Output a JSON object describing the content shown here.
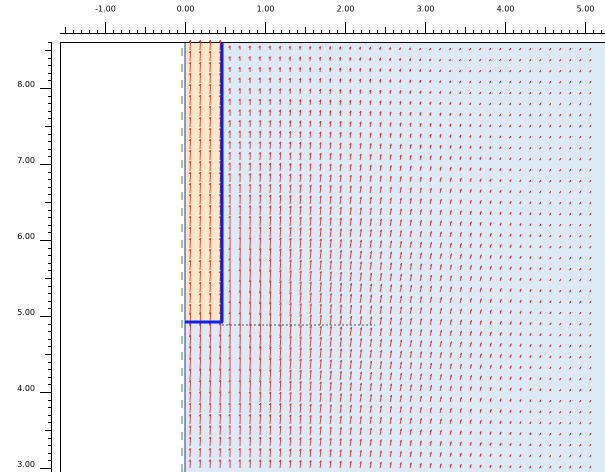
{
  "top_ruler": {
    "ticks": [
      {
        "value": -1,
        "label": "-1.00"
      },
      {
        "value": 0,
        "label": "0.00"
      },
      {
        "value": 1,
        "label": "1.00"
      },
      {
        "value": 2,
        "label": "2.00"
      },
      {
        "value": 3,
        "label": "3.00"
      },
      {
        "value": 4,
        "label": "4.00"
      },
      {
        "value": 5,
        "label": "5.00"
      }
    ]
  },
  "left_ruler": {
    "ticks": [
      {
        "value": 8,
        "label": "8.00"
      },
      {
        "value": 7,
        "label": "7.00"
      },
      {
        "value": 6,
        "label": "6.00"
      },
      {
        "value": 5,
        "label": "5.00"
      },
      {
        "value": 4,
        "label": "4.00"
      },
      {
        "value": 3,
        "label": "3.00"
      }
    ]
  }
}
